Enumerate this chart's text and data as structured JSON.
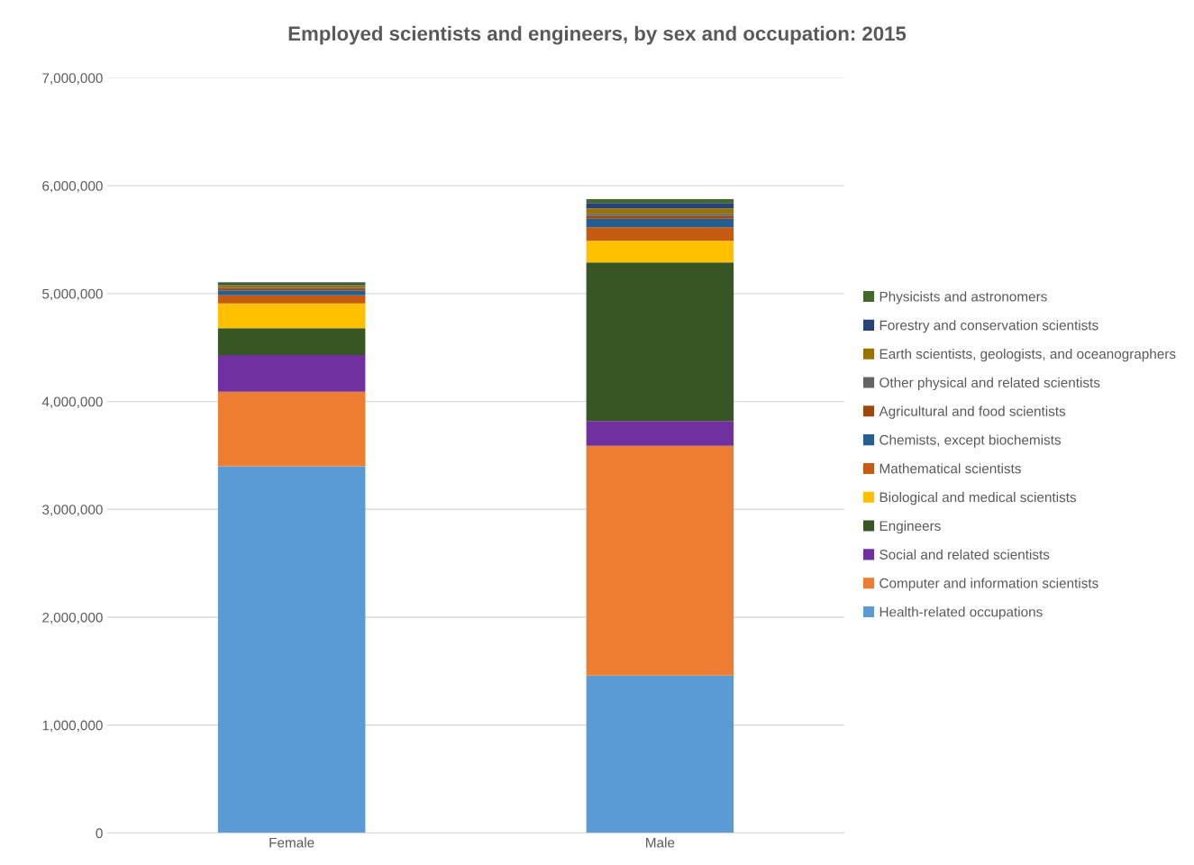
{
  "chart_data": {
    "type": "bar",
    "stacked": true,
    "title": "Employed scientists and engineers, by sex and occupation: 2015",
    "categories": [
      "Female",
      "Male"
    ],
    "series": [
      {
        "name": "Health-related occupations",
        "color": "#5b9bd5",
        "values": [
          3400000,
          1460000
        ]
      },
      {
        "name": "Computer and information scientists",
        "color": "#ed7d31",
        "values": [
          690000,
          2130000
        ]
      },
      {
        "name": "Social and related scientists",
        "color": "#7030a0",
        "values": [
          340000,
          230000
        ]
      },
      {
        "name": "Engineers",
        "color": "#375623",
        "values": [
          250000,
          1470000
        ]
      },
      {
        "name": "Biological and medical scientists",
        "color": "#ffc000",
        "values": [
          230000,
          200000
        ]
      },
      {
        "name": "Mathematical scientists",
        "color": "#c55a11",
        "values": [
          75000,
          125000
        ]
      },
      {
        "name": "Chemists, except biochemists",
        "color": "#255e91",
        "values": [
          40000,
          80000
        ]
      },
      {
        "name": "Agricultural and food scientists",
        "color": "#9e480e",
        "values": [
          15000,
          25000
        ]
      },
      {
        "name": "Other physical and related scientists",
        "color": "#636363",
        "values": [
          15000,
          20000
        ]
      },
      {
        "name": "Earth scientists, geologists, and oceanographers",
        "color": "#997300",
        "values": [
          25000,
          50000
        ]
      },
      {
        "name": "Forestry and conservation scientists",
        "color": "#264478",
        "values": [
          10000,
          50000
        ]
      },
      {
        "name": "Physicists and astronomers",
        "color": "#43682b",
        "values": [
          15000,
          35000
        ]
      }
    ],
    "ylim": [
      0,
      7000000
    ],
    "yticks": [
      0,
      {
        "value": 1000000,
        "label": "1,000,000"
      },
      {
        "value": 2000000,
        "label": "2,000,000"
      },
      {
        "value": 3000000,
        "label": "3,000,000"
      },
      {
        "value": 4000000,
        "label": "4,000,000"
      },
      {
        "value": 5000000,
        "label": "5,000,000"
      },
      {
        "value": 6000000,
        "label": "6,000,000"
      },
      {
        "value": 7000000,
        "label": "7,000,000"
      }
    ],
    "grid": "y",
    "legend": "right"
  }
}
